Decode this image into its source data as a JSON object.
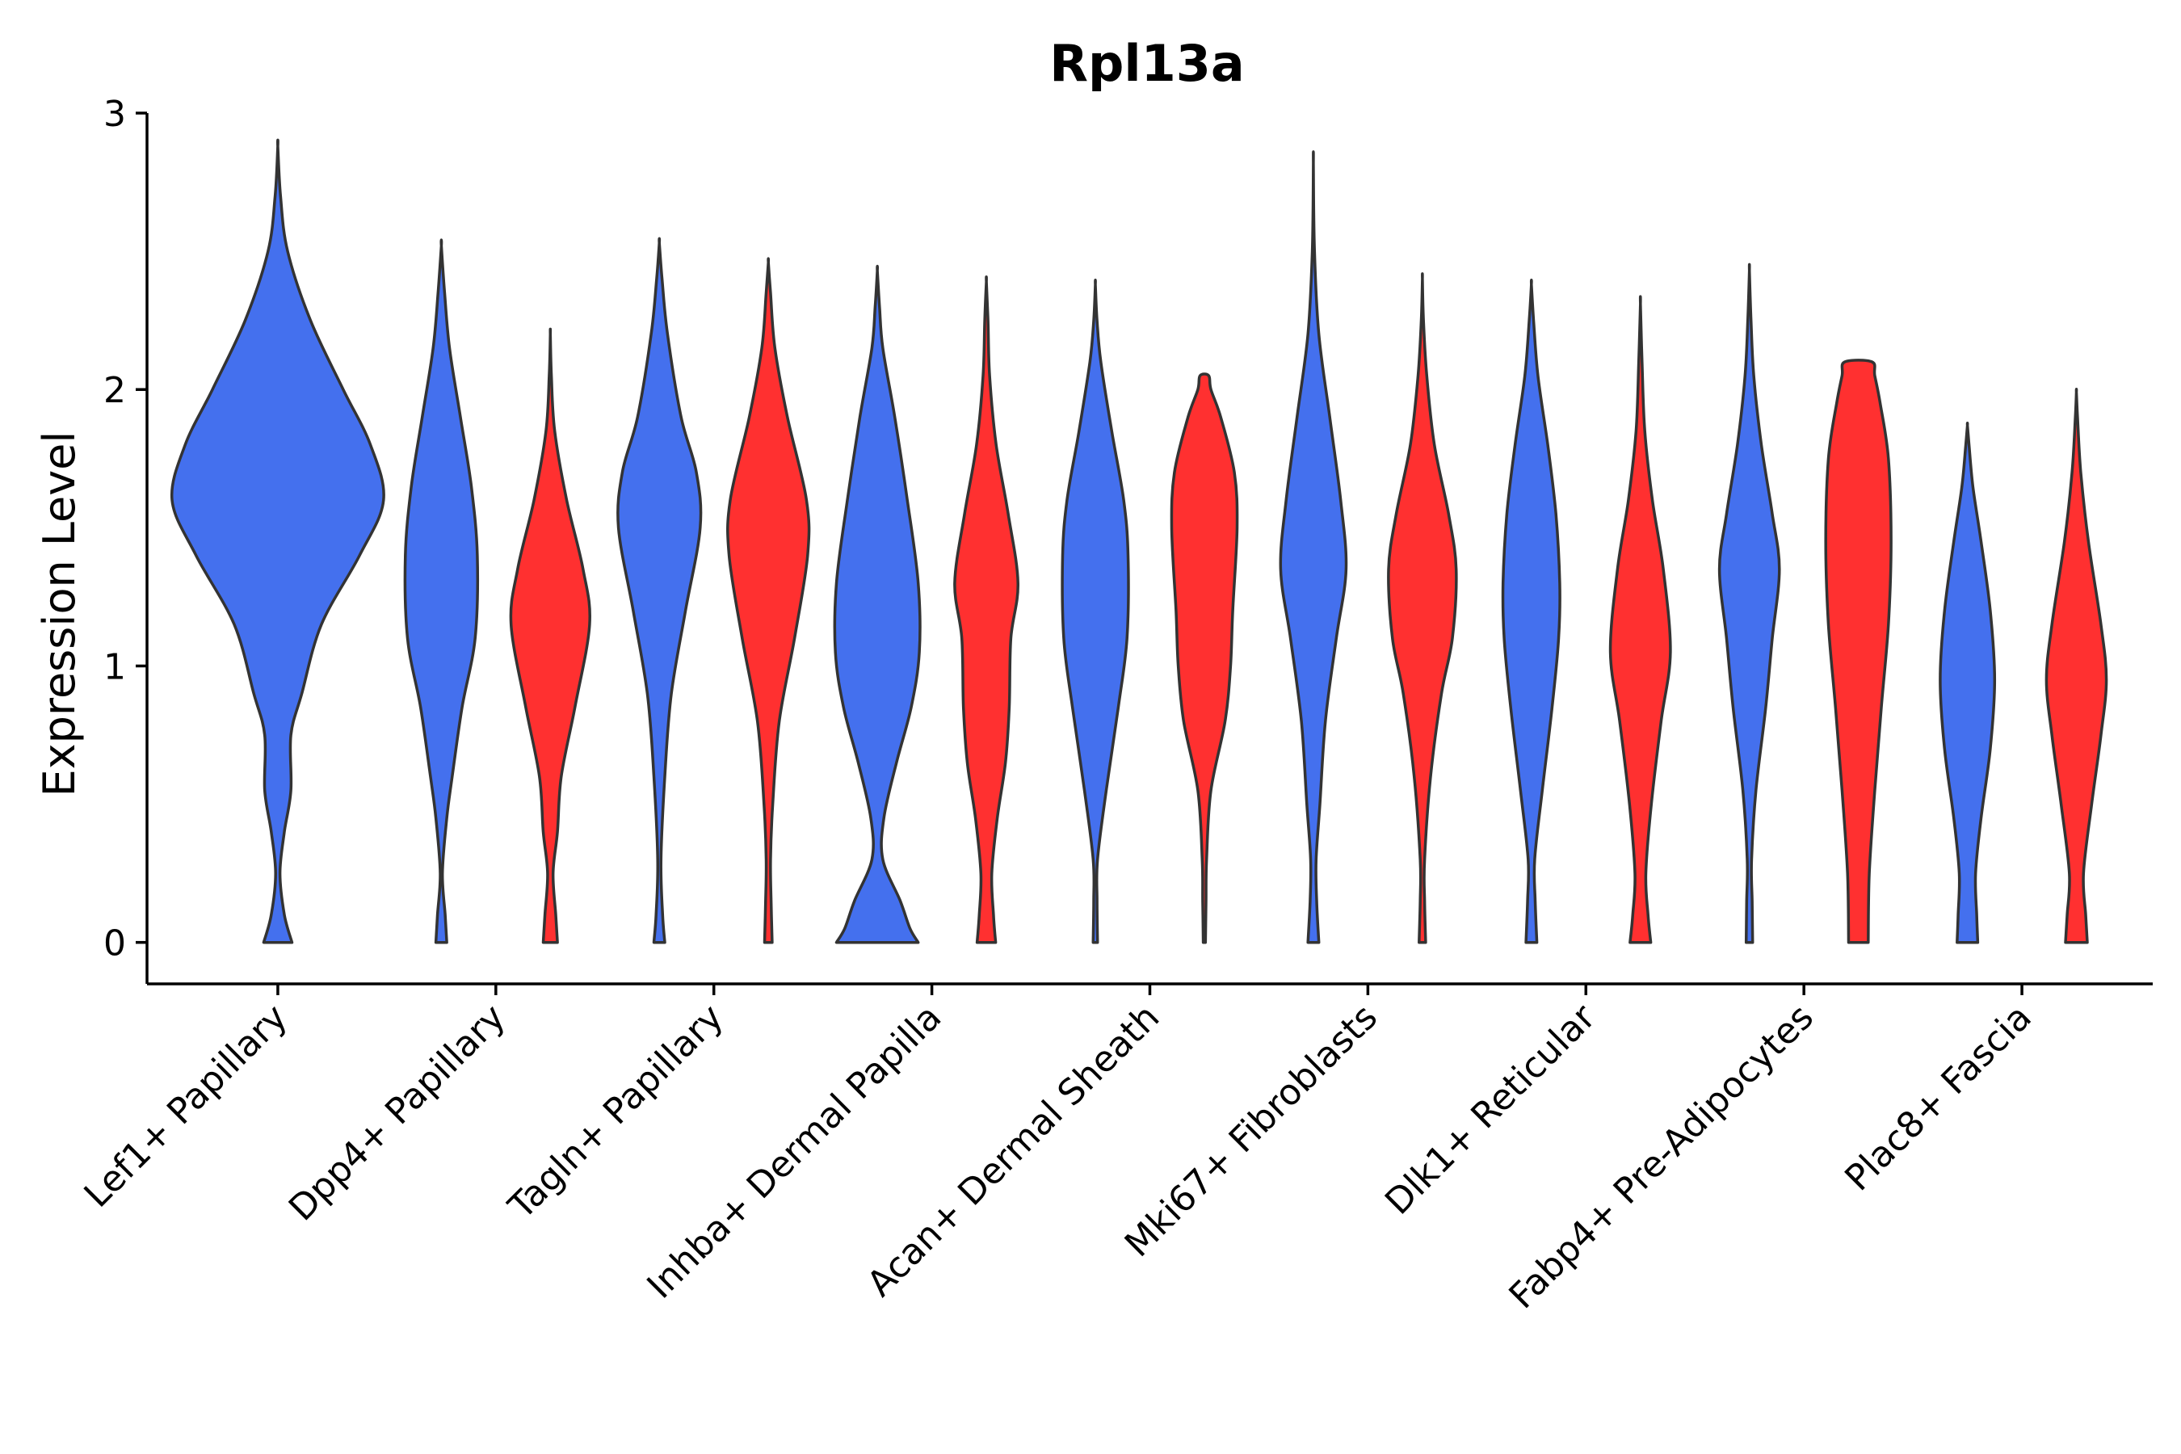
{
  "chart_data": {
    "type": "violin",
    "title": "Rpl13a",
    "xlabel": "",
    "ylabel": "Expression Level",
    "ylim": [
      -0.15,
      3.0
    ],
    "yticks": [
      0,
      1,
      2,
      3
    ],
    "colors": {
      "blue": "#4470EE",
      "red": "#FF3030",
      "outline": "#333333"
    },
    "categories": [
      "Lef1+ Papillary",
      "Dpp4+ Papillary",
      "Tagln+ Papillary",
      "Inhba+ Dermal Papilla",
      "Acan+ Dermal Sheath",
      "Mki67+ Fibroblasts",
      "Dlk1+ Reticular",
      "Fabp4+ Pre-Adipocytes",
      "Plac8+ Fascia"
    ],
    "violins": [
      {
        "category": "Lef1+ Papillary",
        "group": "blue",
        "offset": 0,
        "width": 1.0,
        "profile": [
          [
            0,
            0.13
          ],
          [
            0.1,
            0.06
          ],
          [
            0.25,
            0.02
          ],
          [
            0.4,
            0.06
          ],
          [
            0.55,
            0.12
          ],
          [
            0.75,
            0.12
          ],
          [
            0.9,
            0.22
          ],
          [
            1.15,
            0.4
          ],
          [
            1.4,
            0.75
          ],
          [
            1.6,
            0.97
          ],
          [
            1.8,
            0.85
          ],
          [
            2.0,
            0.6
          ],
          [
            2.25,
            0.3
          ],
          [
            2.5,
            0.09
          ],
          [
            2.7,
            0.025
          ],
          [
            2.88,
            0.0
          ]
        ]
      },
      {
        "category": "Dpp4+ Papillary",
        "group": "blue",
        "offset": -0.25,
        "width": 0.5,
        "profile": [
          [
            0,
            0.1
          ],
          [
            0.1,
            0.07
          ],
          [
            0.25,
            0.02
          ],
          [
            0.45,
            0.1
          ],
          [
            0.6,
            0.2
          ],
          [
            0.85,
            0.38
          ],
          [
            1.1,
            0.62
          ],
          [
            1.4,
            0.66
          ],
          [
            1.65,
            0.55
          ],
          [
            1.9,
            0.35
          ],
          [
            2.15,
            0.15
          ],
          [
            2.35,
            0.06
          ],
          [
            2.52,
            0.0
          ]
        ]
      },
      {
        "category": "Dpp4+ Papillary",
        "group": "red",
        "offset": 0.25,
        "width": 0.5,
        "profile": [
          [
            0,
            0.13
          ],
          [
            0.1,
            0.1
          ],
          [
            0.25,
            0.05
          ],
          [
            0.4,
            0.13
          ],
          [
            0.6,
            0.2
          ],
          [
            0.85,
            0.45
          ],
          [
            1.15,
            0.72
          ],
          [
            1.35,
            0.6
          ],
          [
            1.6,
            0.3
          ],
          [
            1.85,
            0.08
          ],
          [
            2.05,
            0.02
          ],
          [
            2.2,
            0.0
          ]
        ]
      },
      {
        "category": "Tagln+ Papillary",
        "group": "blue",
        "offset": -0.25,
        "width": 0.5,
        "profile": [
          [
            0,
            0.1
          ],
          [
            0.1,
            0.06
          ],
          [
            0.3,
            0.03
          ],
          [
            0.6,
            0.1
          ],
          [
            0.9,
            0.22
          ],
          [
            1.2,
            0.48
          ],
          [
            1.5,
            0.75
          ],
          [
            1.7,
            0.68
          ],
          [
            1.9,
            0.4
          ],
          [
            2.2,
            0.15
          ],
          [
            2.4,
            0.05
          ],
          [
            2.53,
            0.0
          ]
        ]
      },
      {
        "category": "Tagln+ Papillary",
        "group": "red",
        "offset": 0.25,
        "width": 0.5,
        "profile": [
          [
            0,
            0.07
          ],
          [
            0.15,
            0.05
          ],
          [
            0.3,
            0.04
          ],
          [
            0.5,
            0.08
          ],
          [
            0.8,
            0.2
          ],
          [
            1.1,
            0.48
          ],
          [
            1.4,
            0.72
          ],
          [
            1.6,
            0.7
          ],
          [
            1.9,
            0.35
          ],
          [
            2.15,
            0.12
          ],
          [
            2.35,
            0.04
          ],
          [
            2.46,
            0.0
          ]
        ]
      },
      {
        "category": "Inhba+ Dermal Papilla",
        "group": "blue",
        "offset": -0.25,
        "width": 0.5,
        "profile": [
          [
            0,
            0.75
          ],
          [
            0.05,
            0.6
          ],
          [
            0.15,
            0.42
          ],
          [
            0.3,
            0.1
          ],
          [
            0.45,
            0.12
          ],
          [
            0.65,
            0.35
          ],
          [
            0.85,
            0.62
          ],
          [
            1.05,
            0.77
          ],
          [
            1.3,
            0.75
          ],
          [
            1.6,
            0.55
          ],
          [
            1.9,
            0.32
          ],
          [
            2.15,
            0.1
          ],
          [
            2.3,
            0.04
          ],
          [
            2.43,
            0.0
          ]
        ]
      },
      {
        "category": "Inhba+ Dermal Papilla",
        "group": "red",
        "offset": 0.25,
        "width": 0.5,
        "profile": [
          [
            0,
            0.17
          ],
          [
            0.1,
            0.13
          ],
          [
            0.25,
            0.1
          ],
          [
            0.45,
            0.2
          ],
          [
            0.65,
            0.35
          ],
          [
            0.85,
            0.42
          ],
          [
            1.1,
            0.45
          ],
          [
            1.3,
            0.58
          ],
          [
            1.55,
            0.4
          ],
          [
            1.8,
            0.18
          ],
          [
            2.05,
            0.06
          ],
          [
            2.25,
            0.03
          ],
          [
            2.39,
            0.0
          ]
        ]
      },
      {
        "category": "Acan+ Dermal Sheath",
        "group": "blue",
        "offset": -0.25,
        "width": 0.5,
        "profile": [
          [
            0,
            0.04
          ],
          [
            0.15,
            0.03
          ],
          [
            0.3,
            0.04
          ],
          [
            0.55,
            0.2
          ],
          [
            0.85,
            0.42
          ],
          [
            1.1,
            0.58
          ],
          [
            1.4,
            0.6
          ],
          [
            1.6,
            0.52
          ],
          [
            1.85,
            0.3
          ],
          [
            2.1,
            0.1
          ],
          [
            2.25,
            0.03
          ],
          [
            2.38,
            0.0
          ]
        ]
      },
      {
        "category": "Acan+ Dermal Sheath",
        "group": "red",
        "offset": 0.25,
        "width": 0.5,
        "profile": [
          [
            0,
            0.02
          ],
          [
            0.15,
            0.03
          ],
          [
            0.3,
            0.04
          ],
          [
            0.55,
            0.12
          ],
          [
            0.8,
            0.38
          ],
          [
            1.0,
            0.48
          ],
          [
            1.2,
            0.52
          ],
          [
            1.5,
            0.6
          ],
          [
            1.7,
            0.55
          ],
          [
            1.9,
            0.3
          ],
          [
            2.0,
            0.12
          ],
          [
            2.05,
            0.08
          ]
        ],
        "flat_top": true
      },
      {
        "category": "Mki67+ Fibroblasts",
        "group": "blue",
        "offset": -0.25,
        "width": 0.5,
        "profile": [
          [
            0,
            0.1
          ],
          [
            0.15,
            0.06
          ],
          [
            0.3,
            0.05
          ],
          [
            0.5,
            0.12
          ],
          [
            0.8,
            0.22
          ],
          [
            1.1,
            0.42
          ],
          [
            1.35,
            0.6
          ],
          [
            1.6,
            0.5
          ],
          [
            1.9,
            0.3
          ],
          [
            2.2,
            0.1
          ],
          [
            2.5,
            0.02
          ],
          [
            2.82,
            0.0
          ]
        ]
      },
      {
        "category": "Mki67+ Fibroblasts",
        "group": "red",
        "offset": 0.25,
        "width": 0.5,
        "profile": [
          [
            0,
            0.06
          ],
          [
            0.15,
            0.04
          ],
          [
            0.3,
            0.04
          ],
          [
            0.6,
            0.15
          ],
          [
            0.9,
            0.35
          ],
          [
            1.1,
            0.55
          ],
          [
            1.35,
            0.62
          ],
          [
            1.55,
            0.48
          ],
          [
            1.8,
            0.22
          ],
          [
            2.05,
            0.08
          ],
          [
            2.25,
            0.02
          ],
          [
            2.4,
            0.0
          ]
        ]
      },
      {
        "category": "Dlk1+ Reticular",
        "group": "blue",
        "offset": -0.25,
        "width": 0.5,
        "profile": [
          [
            0,
            0.1
          ],
          [
            0.15,
            0.07
          ],
          [
            0.3,
            0.06
          ],
          [
            0.55,
            0.2
          ],
          [
            0.85,
            0.38
          ],
          [
            1.1,
            0.5
          ],
          [
            1.3,
            0.52
          ],
          [
            1.55,
            0.45
          ],
          [
            1.8,
            0.3
          ],
          [
            2.05,
            0.12
          ],
          [
            2.25,
            0.04
          ],
          [
            2.38,
            0.0
          ]
        ]
      },
      {
        "category": "Dlk1+ Reticular",
        "group": "red",
        "offset": 0.25,
        "width": 0.5,
        "profile": [
          [
            0,
            0.19
          ],
          [
            0.1,
            0.14
          ],
          [
            0.25,
            0.1
          ],
          [
            0.5,
            0.2
          ],
          [
            0.8,
            0.38
          ],
          [
            1.05,
            0.55
          ],
          [
            1.35,
            0.42
          ],
          [
            1.6,
            0.22
          ],
          [
            1.85,
            0.08
          ],
          [
            2.1,
            0.03
          ],
          [
            2.31,
            0.0
          ]
        ]
      },
      {
        "category": "Fabp4+ Pre-Adipocytes",
        "group": "blue",
        "offset": -0.25,
        "width": 0.5,
        "profile": [
          [
            0,
            0.06
          ],
          [
            0.15,
            0.05
          ],
          [
            0.3,
            0.04
          ],
          [
            0.55,
            0.12
          ],
          [
            0.85,
            0.3
          ],
          [
            1.1,
            0.42
          ],
          [
            1.35,
            0.55
          ],
          [
            1.55,
            0.42
          ],
          [
            1.8,
            0.22
          ],
          [
            2.05,
            0.08
          ],
          [
            2.25,
            0.03
          ],
          [
            2.43,
            0.0
          ]
        ]
      },
      {
        "category": "Fabp4+ Pre-Adipocytes",
        "group": "red",
        "offset": 0.25,
        "width": 0.5,
        "profile": [
          [
            0,
            0.18
          ],
          [
            0.25,
            0.2
          ],
          [
            0.55,
            0.3
          ],
          [
            0.85,
            0.42
          ],
          [
            1.15,
            0.55
          ],
          [
            1.45,
            0.6
          ],
          [
            1.75,
            0.55
          ],
          [
            1.95,
            0.4
          ],
          [
            2.05,
            0.3
          ],
          [
            2.1,
            0.25
          ]
        ],
        "flat_top": true
      },
      {
        "category": "Plac8+ Fascia",
        "group": "blue",
        "offset": -0.25,
        "width": 0.5,
        "profile": [
          [
            0,
            0.19
          ],
          [
            0.1,
            0.17
          ],
          [
            0.25,
            0.15
          ],
          [
            0.45,
            0.25
          ],
          [
            0.7,
            0.42
          ],
          [
            0.95,
            0.5
          ],
          [
            1.2,
            0.42
          ],
          [
            1.45,
            0.25
          ],
          [
            1.65,
            0.1
          ],
          [
            1.8,
            0.03
          ],
          [
            1.87,
            0.0
          ]
        ]
      },
      {
        "category": "Plac8+ Fascia",
        "group": "red",
        "offset": 0.25,
        "width": 0.5,
        "profile": [
          [
            0,
            0.2
          ],
          [
            0.1,
            0.17
          ],
          [
            0.25,
            0.13
          ],
          [
            0.5,
            0.28
          ],
          [
            0.75,
            0.45
          ],
          [
            0.95,
            0.55
          ],
          [
            1.15,
            0.45
          ],
          [
            1.45,
            0.22
          ],
          [
            1.7,
            0.08
          ],
          [
            1.9,
            0.02
          ],
          [
            1.99,
            0.0
          ]
        ]
      }
    ]
  }
}
